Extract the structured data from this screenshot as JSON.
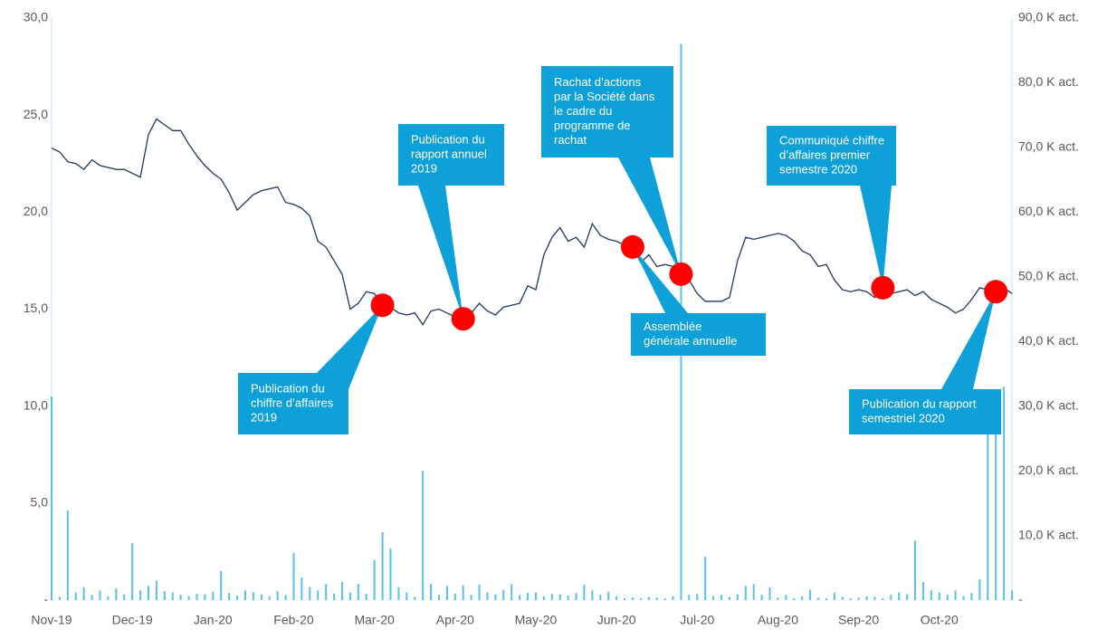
{
  "chart_data": {
    "type": "line",
    "categories": [
      "Nov-19",
      null,
      null,
      null,
      null,
      null,
      null,
      null,
      null,
      null,
      "Dec-19",
      null,
      null,
      null,
      null,
      null,
      null,
      null,
      null,
      null,
      "Jan-20",
      null,
      null,
      null,
      null,
      null,
      null,
      null,
      null,
      null,
      "Feb-20",
      null,
      null,
      null,
      null,
      null,
      null,
      null,
      null,
      null,
      "Mar-20",
      null,
      null,
      null,
      null,
      null,
      null,
      null,
      null,
      null,
      "Apr-20",
      null,
      null,
      null,
      null,
      null,
      null,
      null,
      null,
      null,
      "May-20",
      null,
      null,
      null,
      null,
      null,
      null,
      null,
      null,
      null,
      "Jun-20",
      null,
      null,
      null,
      null,
      null,
      null,
      null,
      null,
      null,
      "Jul-20",
      null,
      null,
      null,
      null,
      null,
      null,
      null,
      null,
      null,
      "Aug-20",
      null,
      null,
      null,
      null,
      null,
      null,
      null,
      null,
      null,
      "Sep-20",
      null,
      null,
      null,
      null,
      null,
      null,
      null,
      null,
      null,
      "Oct-20",
      null,
      null,
      null,
      null,
      null,
      null,
      null,
      null,
      null
    ],
    "series": [
      {
        "type": "line",
        "color": "#1f3864",
        "values": [
          23.3,
          23.1,
          22.6,
          22.5,
          22.2,
          22.7,
          22.4,
          22.3,
          22.2,
          22.2,
          22.0,
          21.8,
          24.0,
          24.8,
          24.5,
          24.2,
          24.2,
          23.5,
          22.9,
          22.4,
          22.0,
          21.7,
          21.0,
          20.1,
          20.5,
          20.9,
          21.1,
          21.2,
          21.3,
          20.5,
          20.4,
          20.2,
          19.8,
          18.5,
          18.2,
          17.5,
          16.8,
          15.0,
          15.3,
          15.9,
          15.8,
          15.2,
          15.1,
          14.8,
          14.7,
          14.8,
          14.2,
          14.9,
          15.0,
          14.8,
          14.6,
          14.5,
          14.8,
          15.3,
          14.9,
          14.7,
          15.1,
          15.2,
          15.3,
          16.2,
          16.0,
          17.8,
          18.7,
          19.2,
          18.5,
          18.7,
          18.2,
          19.4,
          18.8,
          18.6,
          18.5,
          18.3,
          18.2,
          17.4,
          17.8,
          17.2,
          17.3,
          17.2,
          16.8,
          16.5,
          15.8,
          15.4,
          15.4,
          15.4,
          15.6,
          17.5,
          18.7,
          18.6,
          18.7,
          18.8,
          18.9,
          18.8,
          18.5,
          18.0,
          17.8,
          17.2,
          17.3,
          16.5,
          16.0,
          15.9,
          16.0,
          15.9,
          15.6,
          16.1,
          15.8,
          15.9,
          16.0,
          15.7,
          15.9,
          15.5,
          15.3,
          15.1,
          14.8,
          15.0,
          15.5,
          16.1,
          16.0,
          15.9,
          16.1,
          15.8
        ]
      },
      {
        "type": "bar",
        "axis": "y2",
        "color": "#5bc0eb",
        "values": [
          31.5,
          0.5,
          13.9,
          1.2,
          2.0,
          0.8,
          1.5,
          0.6,
          1.8,
          0.9,
          8.8,
          1.5,
          2.2,
          3.0,
          1.4,
          1.2,
          0.8,
          0.6,
          1.0,
          0.9,
          1.3,
          4.5,
          1.1,
          0.7,
          1.5,
          1.2,
          0.9,
          0.6,
          1.4,
          0.8,
          7.3,
          3.5,
          2.0,
          1.5,
          2.5,
          1.0,
          2.8,
          1.2,
          2.5,
          1.0,
          6.2,
          10.5,
          8.0,
          2.0,
          1.2,
          0.5,
          20.0,
          2.5,
          0.8,
          2.2,
          1.0,
          2.3,
          0.8,
          2.4,
          1.2,
          0.9,
          1.6,
          2.5,
          0.8,
          1.1,
          1.2,
          0.6,
          1.0,
          0.9,
          0.7,
          1.1,
          2.4,
          1.5,
          0.8,
          1.3,
          0.6,
          0.3,
          0.4,
          0.3,
          0.5,
          0.4,
          0.3,
          0.6,
          86.0,
          0.8,
          1.0,
          6.7,
          0.6,
          0.8,
          0.5,
          0.9,
          2.2,
          2.5,
          0.8,
          2.0,
          0.4,
          0.8,
          0.3,
          0.6,
          1.6,
          0.4,
          0.3,
          1.2,
          0.5,
          0.3,
          0.4,
          0.6,
          0.5,
          0.3,
          0.8,
          1.2,
          0.9,
          9.2,
          2.8,
          1.5,
          1.2,
          0.8,
          1.5,
          0.6,
          1.1,
          3.2,
          30.0,
          28.0,
          33.0,
          1.5
        ]
      }
    ],
    "ylim": [
      0,
      30
    ],
    "yticks": [
      {
        "value": 0,
        "label": "-"
      },
      {
        "value": 5,
        "label": "5,0"
      },
      {
        "value": 10,
        "label": "10,0"
      },
      {
        "value": 15,
        "label": "15,0"
      },
      {
        "value": 20,
        "label": "20,0"
      },
      {
        "value": 25,
        "label": "25,0"
      },
      {
        "value": 30,
        "label": "30,0"
      }
    ],
    "y2lim": [
      0,
      90
    ],
    "y2ticks": [
      {
        "value": 0,
        "label": "-"
      },
      {
        "value": 10,
        "label": "10,0 K act."
      },
      {
        "value": 20,
        "label": "20,0 K act."
      },
      {
        "value": 30,
        "label": "30,0 K act."
      },
      {
        "value": 40,
        "label": "40,0 K act."
      },
      {
        "value": 50,
        "label": "50,0 K act."
      },
      {
        "value": 60,
        "label": "60,0 K act."
      },
      {
        "value": 70,
        "label": "70,0 K act."
      },
      {
        "value": 80,
        "label": "80,0 K act."
      },
      {
        "value": 90,
        "label": "90,0 K act."
      }
    ],
    "annotation_color": "#0ea0d8",
    "marker_color": "#ff0000",
    "annotations": [
      {
        "lines": [
          "Publication du",
          "chiffre d’affaires",
          "2019"
        ]
      },
      {
        "lines": [
          "Publication du",
          "rapport annuel",
          "2019"
        ]
      },
      {
        "lines": [
          "Rachat d’actions",
          "par la Société dans",
          "le cadre du",
          "programme de",
          "rachat"
        ]
      },
      {
        "lines": [
          "Assemblée",
          "générale annuelle"
        ]
      },
      {
        "lines": [
          "Communiqué chiffre",
          "d’affaires premier",
          "semestre 2020"
        ]
      },
      {
        "lines": [
          "Publication du rapport",
          "semestriel 2020"
        ]
      }
    ]
  }
}
